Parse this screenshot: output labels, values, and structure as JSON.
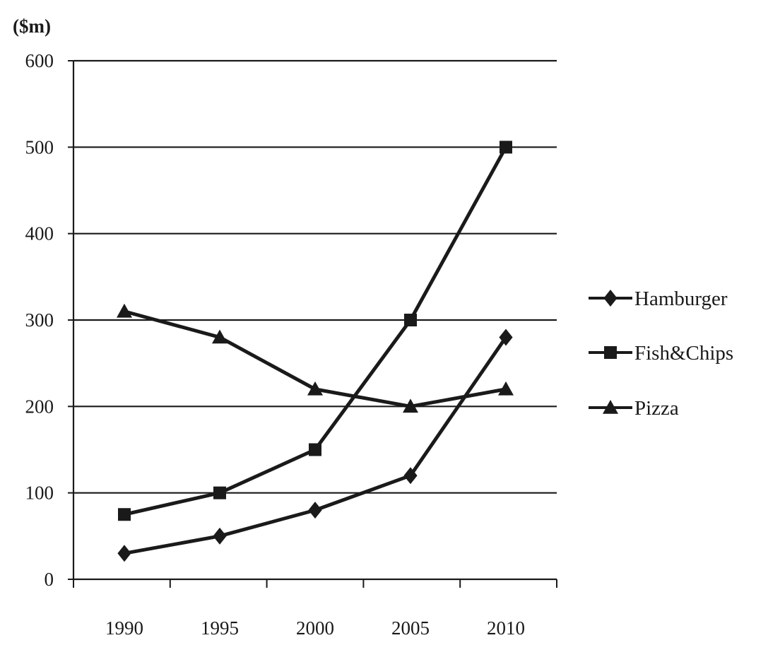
{
  "chart_data": {
    "type": "line",
    "title": "",
    "unit_label": "($m)",
    "xlabel": "",
    "ylabel": "",
    "categories": [
      "1990",
      "1995",
      "2000",
      "2005",
      "2010"
    ],
    "ylim": [
      0,
      600
    ],
    "yticks": [
      "0",
      "100",
      "200",
      "300",
      "400",
      "500",
      "600"
    ],
    "grid": "horizontal",
    "legend_position": "right",
    "series": [
      {
        "name": "Hamburger",
        "marker": "diamond",
        "values": [
          30,
          50,
          80,
          120,
          280
        ]
      },
      {
        "name": "Fish&Chips",
        "marker": "square",
        "values": [
          75,
          100,
          150,
          300,
          500
        ]
      },
      {
        "name": "Pizza",
        "marker": "triangle",
        "values": [
          310,
          280,
          220,
          200,
          220
        ]
      }
    ],
    "colors": {
      "line": "#1a1a1a",
      "grid": "#1a1a1a"
    }
  }
}
